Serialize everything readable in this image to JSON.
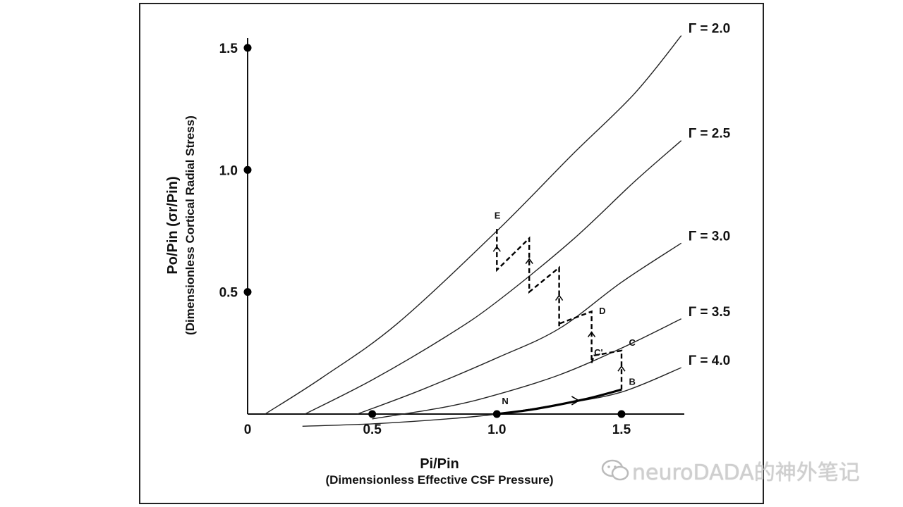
{
  "chart_data": {
    "type": "line",
    "xlabel": "Pi/Pin",
    "xlabel_sub": "(Dimensionless Effective CSF Pressure)",
    "ylabel": "Po/Pin (σr/Pin)",
    "ylabel_sub": "(Dimensionless Cortical Radial Stress)",
    "xlim": [
      0,
      1.75
    ],
    "ylim": [
      0,
      1.55
    ],
    "x_ticks": [
      0,
      0.5,
      1.0,
      1.5
    ],
    "x_tick_labels": [
      "0",
      "0.5",
      "1.0",
      "1.5"
    ],
    "y_ticks": [
      0.5,
      1.0,
      1.5
    ],
    "y_tick_labels": [
      "0.5",
      "1.0",
      "1.5"
    ],
    "grid": false,
    "series": [
      {
        "name": "Γ = 2.0",
        "x": [
          0.07,
          0.3,
          0.6,
          1.0,
          1.3,
          1.55,
          1.74
        ],
        "y": [
          0.0,
          0.15,
          0.37,
          0.75,
          1.06,
          1.31,
          1.55
        ]
      },
      {
        "name": "Γ = 2.5",
        "x": [
          0.23,
          0.5,
          0.8,
          1.0,
          1.3,
          1.55,
          1.74
        ],
        "y": [
          0.0,
          0.14,
          0.32,
          0.46,
          0.71,
          0.95,
          1.12
        ]
      },
      {
        "name": "Γ = 3.0",
        "x": [
          0.44,
          0.7,
          1.0,
          1.25,
          1.5,
          1.74
        ],
        "y": [
          0.0,
          0.1,
          0.23,
          0.35,
          0.54,
          0.7
        ]
      },
      {
        "name": "Γ = 3.5",
        "x": [
          0.5,
          0.8,
          1.0,
          1.25,
          1.5,
          1.74
        ],
        "y": [
          -0.02,
          0.03,
          0.08,
          0.16,
          0.27,
          0.39
        ]
      },
      {
        "name": "Γ = 4.0",
        "x": [
          0.22,
          0.5,
          0.8,
          1.0,
          1.25,
          1.5,
          1.74
        ],
        "y": [
          -0.05,
          -0.04,
          -0.02,
          0.0,
          0.04,
          0.09,
          0.19
        ]
      }
    ],
    "path": {
      "solid": {
        "x": [
          1.0,
          1.15,
          1.35,
          1.5
        ],
        "y": [
          0.0,
          0.02,
          0.06,
          0.1
        ]
      },
      "dashed": {
        "x": [
          1.5,
          1.5,
          1.39,
          1.38,
          1.38,
          1.25,
          1.25,
          1.25,
          1.13,
          1.13,
          1.13,
          1.0,
          1.0
        ],
        "y": [
          0.1,
          0.26,
          0.24,
          0.21,
          0.42,
          0.37,
          0.36,
          0.6,
          0.5,
          0.5,
          0.72,
          0.59,
          0.76
        ]
      }
    },
    "points_on_axes": [
      {
        "x": 0,
        "y": 0.5
      },
      {
        "x": 0,
        "y": 1.0
      },
      {
        "x": 0,
        "y": 1.5
      },
      {
        "x": 0.5,
        "y": 0
      },
      {
        "x": 1.0,
        "y": 0
      },
      {
        "x": 1.5,
        "y": 0
      }
    ],
    "annotations": [
      {
        "text": "N",
        "x": 1.02,
        "y": 0.04
      },
      {
        "text": "B",
        "x": 1.53,
        "y": 0.12
      },
      {
        "text": "C",
        "x": 1.53,
        "y": 0.28
      },
      {
        "text": "C'",
        "x": 1.39,
        "y": 0.24
      },
      {
        "text": "D",
        "x": 1.41,
        "y": 0.41
      },
      {
        "text": "E",
        "x": 0.99,
        "y": 0.8
      }
    ]
  },
  "watermark": "neuroDADA的神外笔记"
}
